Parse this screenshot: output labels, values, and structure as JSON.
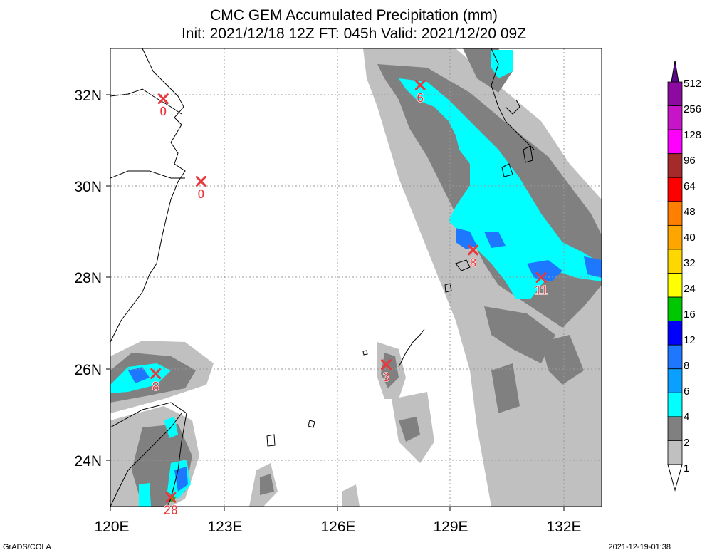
{
  "title": {
    "line1": "CMC GEM Accumulated Precipitation (mm)",
    "line2": "Init: 2021/12/18 12Z  FT: 045h  Valid: 2021/12/20 09Z"
  },
  "axes": {
    "x_ticks": [
      "120E",
      "123E",
      "126E",
      "129E",
      "132E"
    ],
    "y_ticks": [
      "32N",
      "30N",
      "28N",
      "26N",
      "24N"
    ],
    "lon_range": [
      120,
      133
    ],
    "lat_range": [
      23,
      33
    ]
  },
  "colorbar": {
    "levels": [
      "512",
      "256",
      "128",
      "96",
      "64",
      "48",
      "40",
      "32",
      "24",
      "16",
      "12",
      "8",
      "6",
      "4",
      "2",
      "1"
    ],
    "colors": [
      "#5a0a8c",
      "#8c0aa0",
      "#c814c8",
      "#ff00ff",
      "#a52a2a",
      "#ff0000",
      "#ff7f00",
      "#ffa500",
      "#ffd700",
      "#ffff00",
      "#00c800",
      "#0000ff",
      "#1e78ff",
      "#0aa0ff",
      "#00ffff",
      "#808080",
      "#c0c0c0",
      "#ffffff"
    ]
  },
  "station_values": [
    {
      "label": "0",
      "lon": 121.4,
      "lat": 31.9
    },
    {
      "label": "0",
      "lon": 122.4,
      "lat": 30.1
    },
    {
      "label": "6",
      "lon": 128.2,
      "lat": 32.2
    },
    {
      "label": "8",
      "lon": 129.6,
      "lat": 28.6
    },
    {
      "label": "11",
      "lon": 131.4,
      "lat": 28.0
    },
    {
      "label": "8",
      "lon": 121.2,
      "lat": 25.9
    },
    {
      "label": "3",
      "lon": 127.3,
      "lat": 26.1
    },
    {
      "label": "28",
      "lon": 121.6,
      "lat": 23.2
    }
  ],
  "footer": {
    "left": "GrADS/COLA",
    "right": "2021-12-19-01:38"
  }
}
